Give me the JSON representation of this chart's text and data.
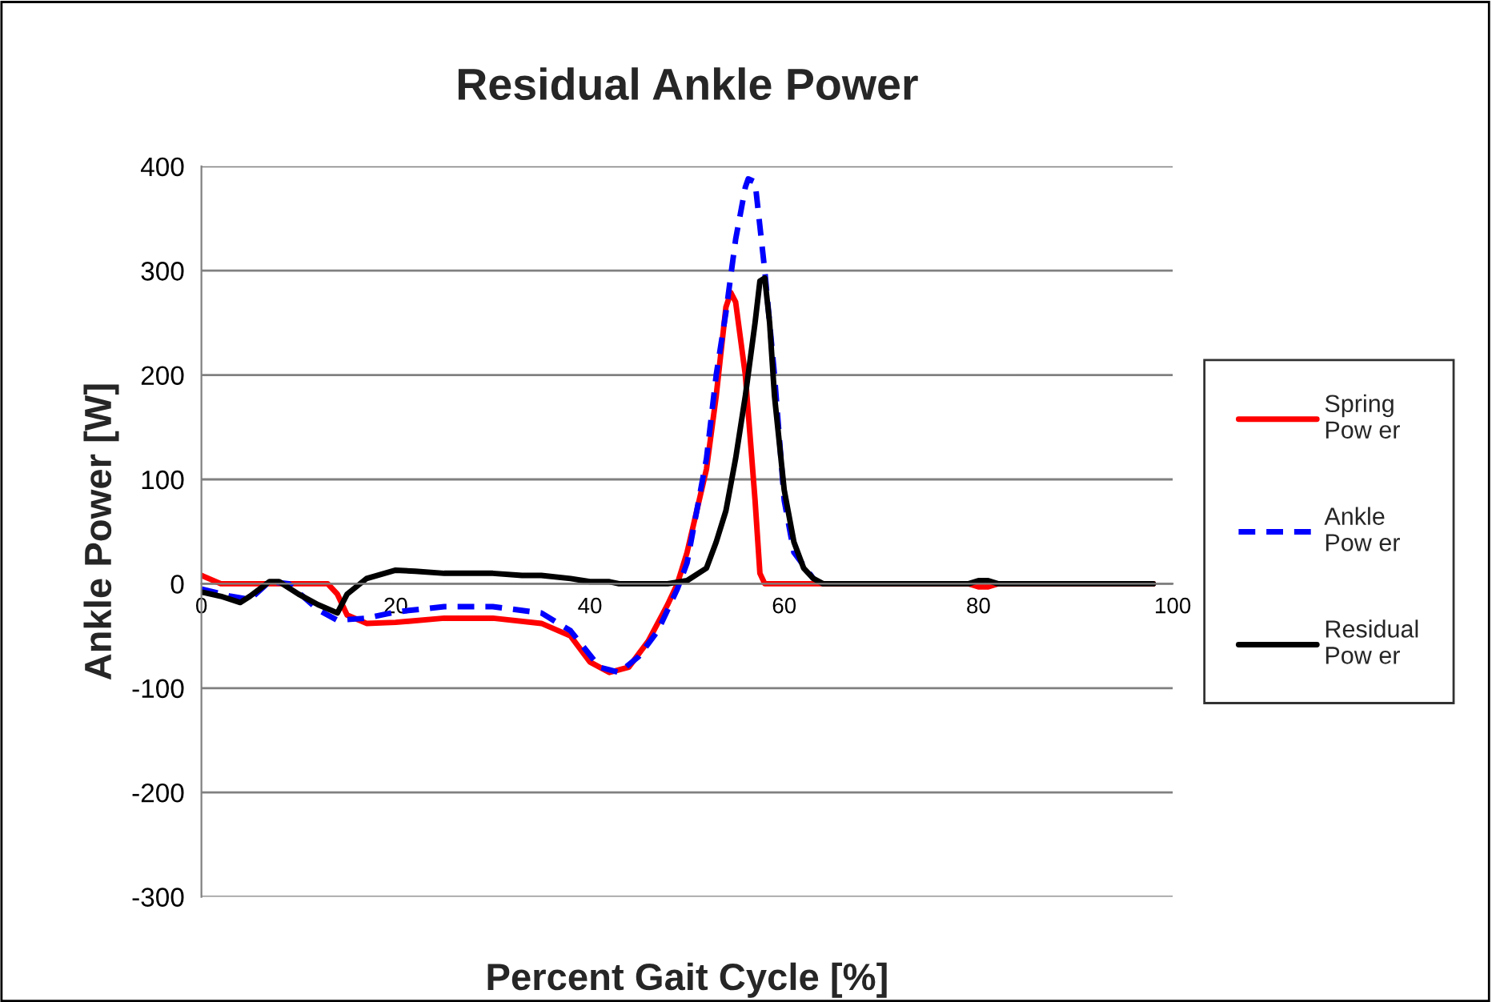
{
  "chart_data": {
    "type": "line",
    "title": "Residual Ankle Power",
    "xlabel": "Percent Gait Cycle [%]",
    "ylabel": "Ankle Power [W]",
    "xlim": [
      0,
      100
    ],
    "ylim": [
      -300,
      400
    ],
    "xticks": [
      0,
      20,
      40,
      60,
      80,
      100
    ],
    "yticks": [
      -300,
      -200,
      -100,
      0,
      100,
      200,
      300,
      400
    ],
    "grid": "y",
    "legend": "right",
    "series": [
      {
        "name": "Spring\nPow er",
        "color": "#ff0000",
        "line_style": "solid",
        "x": [
          0,
          2,
          8,
          13,
          14,
          15,
          17,
          20,
          25,
          30,
          35,
          38,
          40,
          42,
          44,
          46,
          48,
          49,
          50,
          52,
          53,
          54,
          54.5,
          55,
          56,
          57,
          57.5,
          58,
          65,
          79,
          80,
          81,
          82,
          98
        ],
        "values": [
          8,
          0,
          0,
          0,
          -10,
          -30,
          -38,
          -37,
          -33,
          -33,
          -38,
          -50,
          -75,
          -85,
          -80,
          -55,
          -20,
          0,
          30,
          110,
          180,
          265,
          279,
          270,
          200,
          80,
          10,
          0,
          0,
          0,
          -3,
          -3,
          0,
          0
        ]
      },
      {
        "name": "Ankle\nPow er",
        "color": "#0000ff",
        "line_style": "dashed",
        "x": [
          0,
          3,
          5,
          7,
          9,
          12,
          14,
          17,
          20,
          25,
          30,
          35,
          38,
          41,
          43,
          45,
          47,
          49,
          50,
          52,
          53,
          54,
          55,
          56,
          56.3,
          57,
          58,
          59,
          60,
          61,
          63
        ],
        "values": [
          -5,
          -12,
          -15,
          2,
          0,
          -25,
          -35,
          -33,
          -27,
          -22,
          -22,
          -28,
          -45,
          -80,
          -85,
          -70,
          -45,
          -5,
          20,
          120,
          200,
          260,
          330,
          380,
          388,
          385,
          300,
          200,
          80,
          30,
          5
        ]
      },
      {
        "name": "Residual\nPow er",
        "color": "#000000",
        "line_style": "solid",
        "x": [
          0,
          2,
          4,
          5,
          7,
          8,
          10,
          12,
          14,
          15,
          17,
          20,
          22,
          25,
          30,
          33,
          35,
          38,
          40,
          42,
          43,
          48,
          50,
          52,
          53,
          54,
          55,
          56,
          57,
          57.5,
          58,
          58.5,
          59,
          60,
          61,
          62,
          63,
          64,
          79,
          80,
          81,
          82,
          98
        ],
        "values": [
          -8,
          -12,
          -18,
          -12,
          2,
          2,
          -10,
          -20,
          -28,
          -10,
          5,
          13,
          12,
          10,
          10,
          8,
          8,
          5,
          2,
          2,
          0,
          0,
          3,
          15,
          40,
          70,
          120,
          180,
          250,
          290,
          293,
          250,
          180,
          90,
          40,
          15,
          5,
          0,
          0,
          3,
          3,
          0,
          0
        ]
      }
    ]
  }
}
